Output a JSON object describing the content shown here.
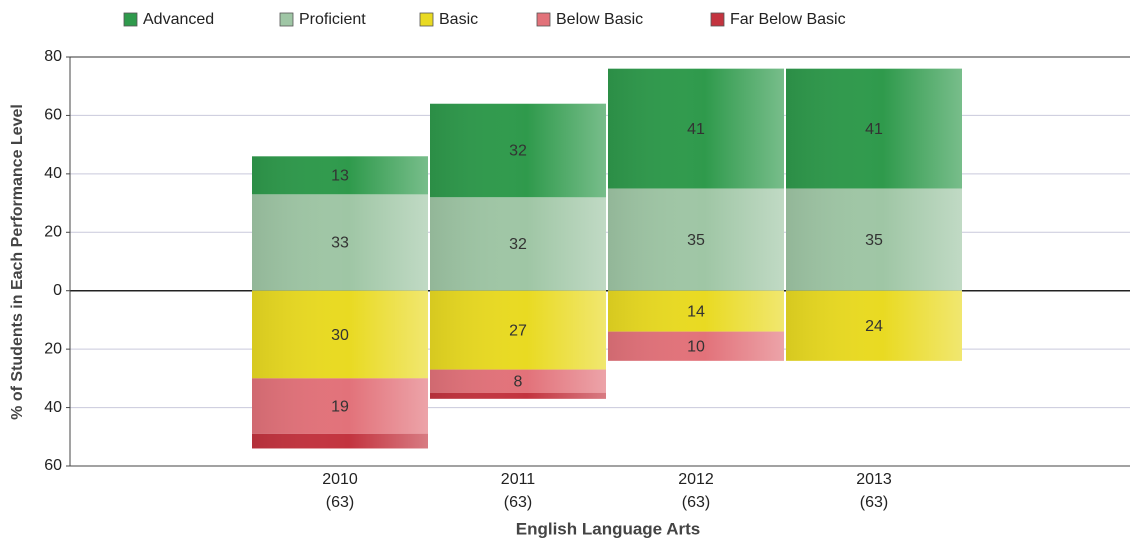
{
  "chart_data": {
    "type": "bar",
    "stacked": true,
    "x_label": "English Language Arts",
    "y_label": "% of Students in Each Performance Level",
    "categories": [
      "2010",
      "2011",
      "2012",
      "2013"
    ],
    "category_counts": [
      "(63)",
      "(63)",
      "(63)",
      "(63)"
    ],
    "series": [
      {
        "name": "Advanced",
        "color": "#2f9a4c",
        "values": [
          13,
          32,
          41,
          41
        ]
      },
      {
        "name": "Proficient",
        "color": "#9fc6a5",
        "values": [
          33,
          32,
          35,
          35
        ]
      },
      {
        "name": "Basic",
        "color": "#e9da22",
        "values": [
          -30,
          -27,
          -14,
          -24
        ],
        "value_labels": [
          "30",
          "27",
          "14",
          "24"
        ]
      },
      {
        "name": "Below Basic",
        "color": "#e2727a",
        "values": [
          -19,
          -8,
          -10,
          0
        ],
        "value_labels": [
          "19",
          "8",
          "10",
          null
        ]
      },
      {
        "name": "Far Below Basic",
        "color": "#c3343f",
        "values": [
          -5,
          -2,
          0,
          0
        ],
        "value_labels": [
          null,
          null,
          null,
          null
        ]
      }
    ],
    "ylim": [
      -60,
      80
    ],
    "yticks": [
      {
        "value": -60,
        "label": "60"
      },
      {
        "value": -40,
        "label": "40"
      },
      {
        "value": -20,
        "label": "20"
      },
      0,
      20,
      40,
      60,
      80
    ],
    "grid": true,
    "legend": "top"
  }
}
